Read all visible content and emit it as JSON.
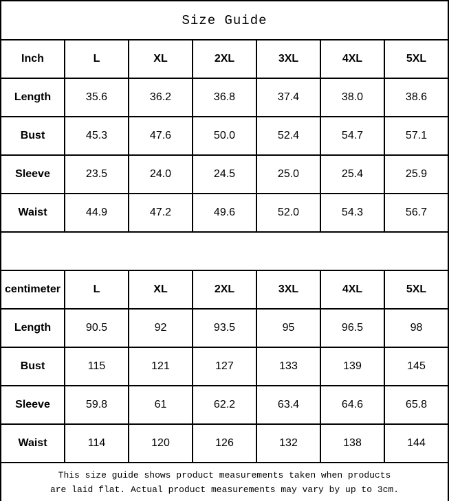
{
  "title": "Size Guide",
  "tables": [
    {
      "unit_header": "Inch",
      "sizes": [
        "L",
        "XL",
        "2XL",
        "3XL",
        "4XL",
        "5XL"
      ],
      "rows": [
        {
          "label": "Length",
          "values": [
            "35.6",
            "36.2",
            "36.8",
            "37.4",
            "38.0",
            "38.6"
          ]
        },
        {
          "label": "Bust",
          "values": [
            "45.3",
            "47.6",
            "50.0",
            "52.4",
            "54.7",
            "57.1"
          ]
        },
        {
          "label": "Sleeve",
          "values": [
            "23.5",
            "24.0",
            "24.5",
            "25.0",
            "25.4",
            "25.9"
          ]
        },
        {
          "label": "Waist",
          "values": [
            "44.9",
            "47.2",
            "49.6",
            "52.0",
            "54.3",
            "56.7"
          ]
        }
      ]
    },
    {
      "unit_header": "centimeter",
      "sizes": [
        "L",
        "XL",
        "2XL",
        "3XL",
        "4XL",
        "5XL"
      ],
      "rows": [
        {
          "label": "Length",
          "values": [
            "90.5",
            "92",
            "93.5",
            "95",
            "96.5",
            "98"
          ]
        },
        {
          "label": "Bust",
          "values": [
            "115",
            "121",
            "127",
            "133",
            "139",
            "145"
          ]
        },
        {
          "label": "Sleeve",
          "values": [
            "59.8",
            "61",
            "62.2",
            "63.4",
            "64.6",
            "65.8"
          ]
        },
        {
          "label": "Waist",
          "values": [
            "114",
            "120",
            "126",
            "132",
            "138",
            "144"
          ]
        }
      ]
    }
  ],
  "footer": {
    "line1": "This size guide shows product measurements taken when products",
    "line2": "are laid flat. Actual product measurements may vary by up to 3cm."
  },
  "colors": {
    "border": "#000000",
    "text": "#000000",
    "background": "#ffffff"
  }
}
